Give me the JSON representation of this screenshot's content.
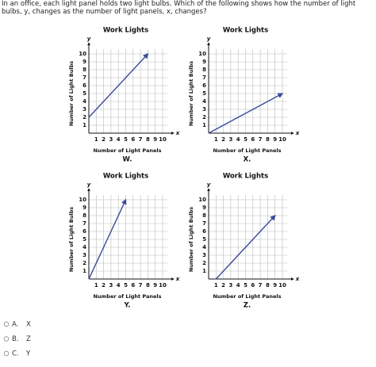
{
  "question": "In an office, each light panel holds two light bulbs. Which of the following shows how the number of light bulbs, y, changes as the number of light panels, x, changes?",
  "chart_data": [
    {
      "type": "line",
      "title": "Work Lights",
      "caption": "W.",
      "x_label": "Number of Light Panels",
      "y_label": "Number of Light Bulbs",
      "x_axis_letter": "x",
      "y_axis_letter": "y",
      "color": "#3b4a9c",
      "grid": true,
      "x": [
        0,
        8
      ],
      "values": [
        2,
        10
      ],
      "xlim": [
        0,
        10
      ],
      "ylim": [
        0,
        10
      ],
      "xticks": [
        1,
        2,
        3,
        4,
        5,
        6,
        7,
        8,
        9,
        10
      ],
      "yticks": [
        1,
        2,
        3,
        4,
        5,
        6,
        7,
        8,
        9,
        10
      ]
    },
    {
      "type": "line",
      "title": "Work Lights",
      "caption": "X.",
      "x_label": "Number of Light Panels",
      "y_label": "Number of Light Bulbs",
      "x_axis_letter": "x",
      "y_axis_letter": "y",
      "color": "#3b4a9c",
      "grid": true,
      "x": [
        0,
        10
      ],
      "values": [
        0,
        5
      ],
      "xlim": [
        0,
        10
      ],
      "ylim": [
        0,
        10
      ],
      "xticks": [
        1,
        2,
        3,
        4,
        5,
        6,
        7,
        8,
        9,
        10
      ],
      "yticks": [
        1,
        2,
        3,
        4,
        5,
        6,
        7,
        8,
        9,
        10
      ]
    },
    {
      "type": "line",
      "title": "Work Lights",
      "caption": "Y.",
      "x_label": "Number of Light Panels",
      "y_label": "Number of Light Bulbs",
      "x_axis_letter": "x",
      "y_axis_letter": "y",
      "color": "#3b4a9c",
      "grid": true,
      "x": [
        0,
        5
      ],
      "values": [
        0,
        10
      ],
      "xlim": [
        0,
        10
      ],
      "ylim": [
        0,
        10
      ],
      "xticks": [
        1,
        2,
        3,
        4,
        5,
        6,
        7,
        8,
        9,
        10
      ],
      "yticks": [
        1,
        2,
        3,
        4,
        5,
        6,
        7,
        8,
        9,
        10
      ]
    },
    {
      "type": "line",
      "title": "Work Lights",
      "caption": "Z.",
      "x_label": "Number of Light Panels",
      "y_label": "Number of Light Bulbs",
      "x_axis_letter": "x",
      "y_axis_letter": "y",
      "color": "#3b4a9c",
      "grid": true,
      "x": [
        1,
        9
      ],
      "values": [
        0,
        8
      ],
      "xlim": [
        0,
        10
      ],
      "ylim": [
        0,
        10
      ],
      "xticks": [
        1,
        2,
        3,
        4,
        5,
        6,
        7,
        8,
        9,
        10
      ],
      "yticks": [
        1,
        2,
        3,
        4,
        5,
        6,
        7,
        8,
        9,
        10
      ]
    }
  ],
  "options": [
    {
      "letter": "A.",
      "text": "X"
    },
    {
      "letter": "B.",
      "text": "Z"
    },
    {
      "letter": "C.",
      "text": "Y"
    }
  ]
}
